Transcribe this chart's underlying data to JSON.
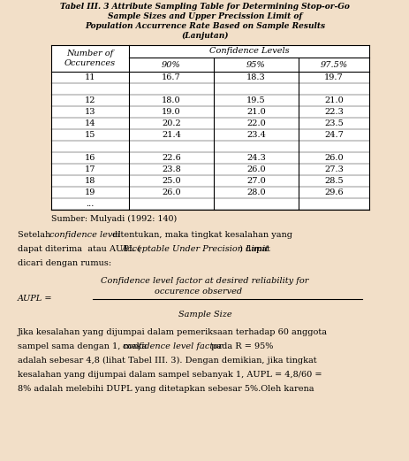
{
  "title_line1": "Tabel III. 3 Attribute Sampling Table for Determining Stop-or-Go",
  "title_line2": "Sample Sizes and Upper Precission Limit of",
  "title_line3": "Population Accurrence Rate Based on Sample Results",
  "title_line4": "(Lanjutan)",
  "col_header_span": "Confidence Levels",
  "col_pct": [
    "90%",
    "95%",
    "97.5%"
  ],
  "rows": [
    [
      "11",
      "16.7",
      "18.3",
      "19.7"
    ],
    [
      "",
      "",
      "",
      ""
    ],
    [
      "12",
      "18.0",
      "19.5",
      "21.0"
    ],
    [
      "13",
      "19.0",
      "21.0",
      "22.3"
    ],
    [
      "14",
      "20.2",
      "22.0",
      "23.5"
    ],
    [
      "15",
      "21.4",
      "23.4",
      "24.7"
    ],
    [
      "",
      "",
      "",
      ""
    ],
    [
      "16",
      "22.6",
      "24.3",
      "26.0"
    ],
    [
      "17",
      "23.8",
      "26.0",
      "27.3"
    ],
    [
      "18",
      "25.0",
      "27.0",
      "28.5"
    ],
    [
      "19",
      "26.0",
      "28.0",
      "29.6"
    ],
    [
      "...",
      "",
      "",
      ""
    ]
  ],
  "source": "Sumber: Mulyadi (1992: 140)",
  "bg_color": "#f2dfc8",
  "text_color": "#000000",
  "title_fs": 6.5,
  "body_fs": 7.0,
  "table_fs": 7.0
}
